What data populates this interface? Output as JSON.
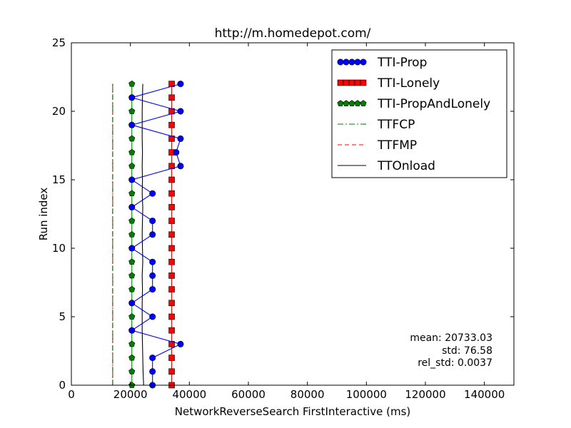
{
  "chart_data": {
    "type": "line",
    "title": "http://m.homedepot.com/",
    "xlabel": "NetworkReverseSearch FirstInteractive (ms)",
    "ylabel": "Run index",
    "xlim": [
      0,
      150000
    ],
    "ylim": [
      0,
      25
    ],
    "xticks": [
      0,
      20000,
      40000,
      60000,
      80000,
      100000,
      120000,
      140000
    ],
    "xtick_labels": [
      "0",
      "20000",
      "40000",
      "60000",
      "80000",
      "100000",
      "120000",
      "140000"
    ],
    "yticks": [
      0,
      5,
      10,
      15,
      20,
      25
    ],
    "ytick_labels": [
      "0",
      "5",
      "10",
      "15",
      "20",
      "25"
    ],
    "grid": false,
    "legend_position": "top-right",
    "series": [
      {
        "name": "TTI-Prop",
        "style": "line-marker",
        "marker": "circle",
        "color": "#0000ff",
        "x": [
          27500,
          27500,
          27500,
          37000,
          20500,
          27500,
          20500,
          27500,
          27500,
          27500,
          20500,
          27500,
          27500,
          20500,
          27500,
          20500,
          37000,
          35500,
          37000,
          20500,
          37000,
          20500,
          37000
        ],
        "y": [
          0,
          1,
          2,
          3,
          4,
          5,
          6,
          7,
          8,
          9,
          10,
          11,
          12,
          13,
          14,
          15,
          16,
          17,
          18,
          19,
          20,
          21,
          22
        ]
      },
      {
        "name": "TTI-Lonely",
        "style": "line-marker",
        "marker": "square",
        "color": "#ff0000",
        "x": [
          34000,
          34000,
          34000,
          34000,
          34000,
          34000,
          34000,
          34000,
          34000,
          34000,
          34000,
          34000,
          34000,
          34000,
          34000,
          34000,
          34000,
          34000,
          34000,
          34000,
          34000,
          34000,
          34000
        ],
        "y": [
          0,
          1,
          2,
          3,
          4,
          5,
          6,
          7,
          8,
          9,
          10,
          11,
          12,
          13,
          14,
          15,
          16,
          17,
          18,
          19,
          20,
          21,
          22
        ]
      },
      {
        "name": "TTI-PropAndLonely",
        "style": "line-marker",
        "marker": "pentagon",
        "color": "#008000",
        "x": [
          20500,
          20500,
          20500,
          20500,
          20500,
          20500,
          20500,
          20500,
          20500,
          20500,
          20500,
          20500,
          20500,
          20500,
          20500,
          20500,
          20500,
          20500,
          20500,
          20500,
          20500,
          20500,
          20500
        ],
        "y": [
          0,
          1,
          2,
          3,
          4,
          5,
          6,
          7,
          8,
          9,
          10,
          11,
          12,
          13,
          14,
          15,
          16,
          17,
          18,
          19,
          20,
          21,
          22
        ]
      },
      {
        "name": "TTFCP",
        "style": "dashdot",
        "color": "#008000",
        "x": [
          14000,
          14000
        ],
        "y": [
          0,
          22
        ]
      },
      {
        "name": "TTFMP",
        "style": "dashed",
        "color": "#ff0000",
        "x": [
          14000,
          14000
        ],
        "y": [
          0,
          22
        ]
      },
      {
        "name": "TTOnload",
        "style": "solid",
        "color": "#000000",
        "x": [
          24500,
          24300,
          24200,
          24100,
          24000,
          24000,
          24000,
          24100,
          24000,
          24200,
          24100,
          24000,
          24100,
          24200,
          24000,
          24100,
          24000,
          24100,
          24000,
          24000,
          24000,
          24100,
          24200
        ],
        "y": [
          0,
          1,
          2,
          3,
          4,
          5,
          6,
          7,
          8,
          9,
          10,
          11,
          12,
          13,
          14,
          15,
          16,
          17,
          18,
          19,
          20,
          21,
          22
        ]
      }
    ],
    "annotations": [
      "mean: 20733.03",
      "std: 76.58",
      "rel_std: 0.0037"
    ]
  }
}
